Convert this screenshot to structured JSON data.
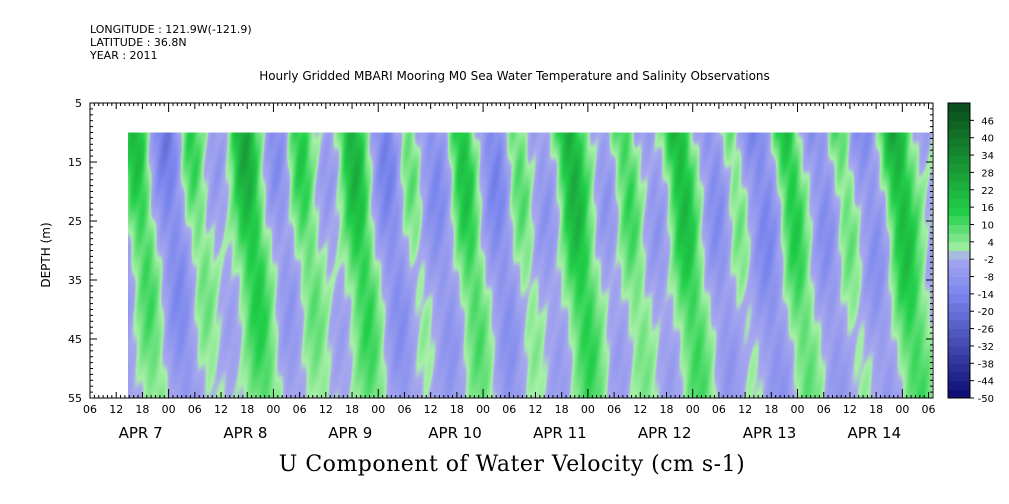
{
  "header": {
    "longitude": "LONGITUDE : 121.9W(-121.9)",
    "latitude": "LATITUDE : 36.8N",
    "year": "YEAR : 2011"
  },
  "chart_data": {
    "type": "heatmap",
    "title": "Hourly Gridded MBARI Mooring M0 Sea Water Temperature and Salinity Observations",
    "main_title": "U Component of Water Velocity (cm s-1)",
    "ylabel": "DEPTH (m)",
    "ylim": [
      55,
      5
    ],
    "y_ticks": [
      5,
      15,
      25,
      35,
      45,
      55
    ],
    "data_depth_range": [
      10,
      55
    ],
    "x_hour_ticks": [
      "06",
      "12",
      "18",
      "00",
      "06",
      "12",
      "18",
      "00",
      "06",
      "12",
      "18",
      "00",
      "06",
      "12",
      "18",
      "00",
      "06",
      "12",
      "18",
      "00",
      "06",
      "12",
      "18",
      "00",
      "06",
      "12",
      "18",
      "00",
      "06",
      "12",
      "18",
      "00",
      "06"
    ],
    "x_day_labels": [
      "APR 7",
      "APR 8",
      "APR 9",
      "APR 10",
      "APR 11",
      "APR 12",
      "APR 13",
      "APR 14"
    ],
    "colorbar_levels": [
      "46",
      "40",
      "34",
      "28",
      "22",
      "16",
      "10",
      "4",
      "-2",
      "-8",
      "-14",
      "-20",
      "-26",
      "-32",
      "-38",
      "-44",
      "-50"
    ],
    "colorbar_range": [
      -50,
      52
    ],
    "colors": {
      "strong_positive": "#0a4a1a",
      "positive": "#22d04a",
      "weak_positive": "#a8f0a8",
      "weak_negative": "#a8a8ee",
      "negative": "#7a86ee",
      "strong_negative": "#0a0a70"
    }
  }
}
